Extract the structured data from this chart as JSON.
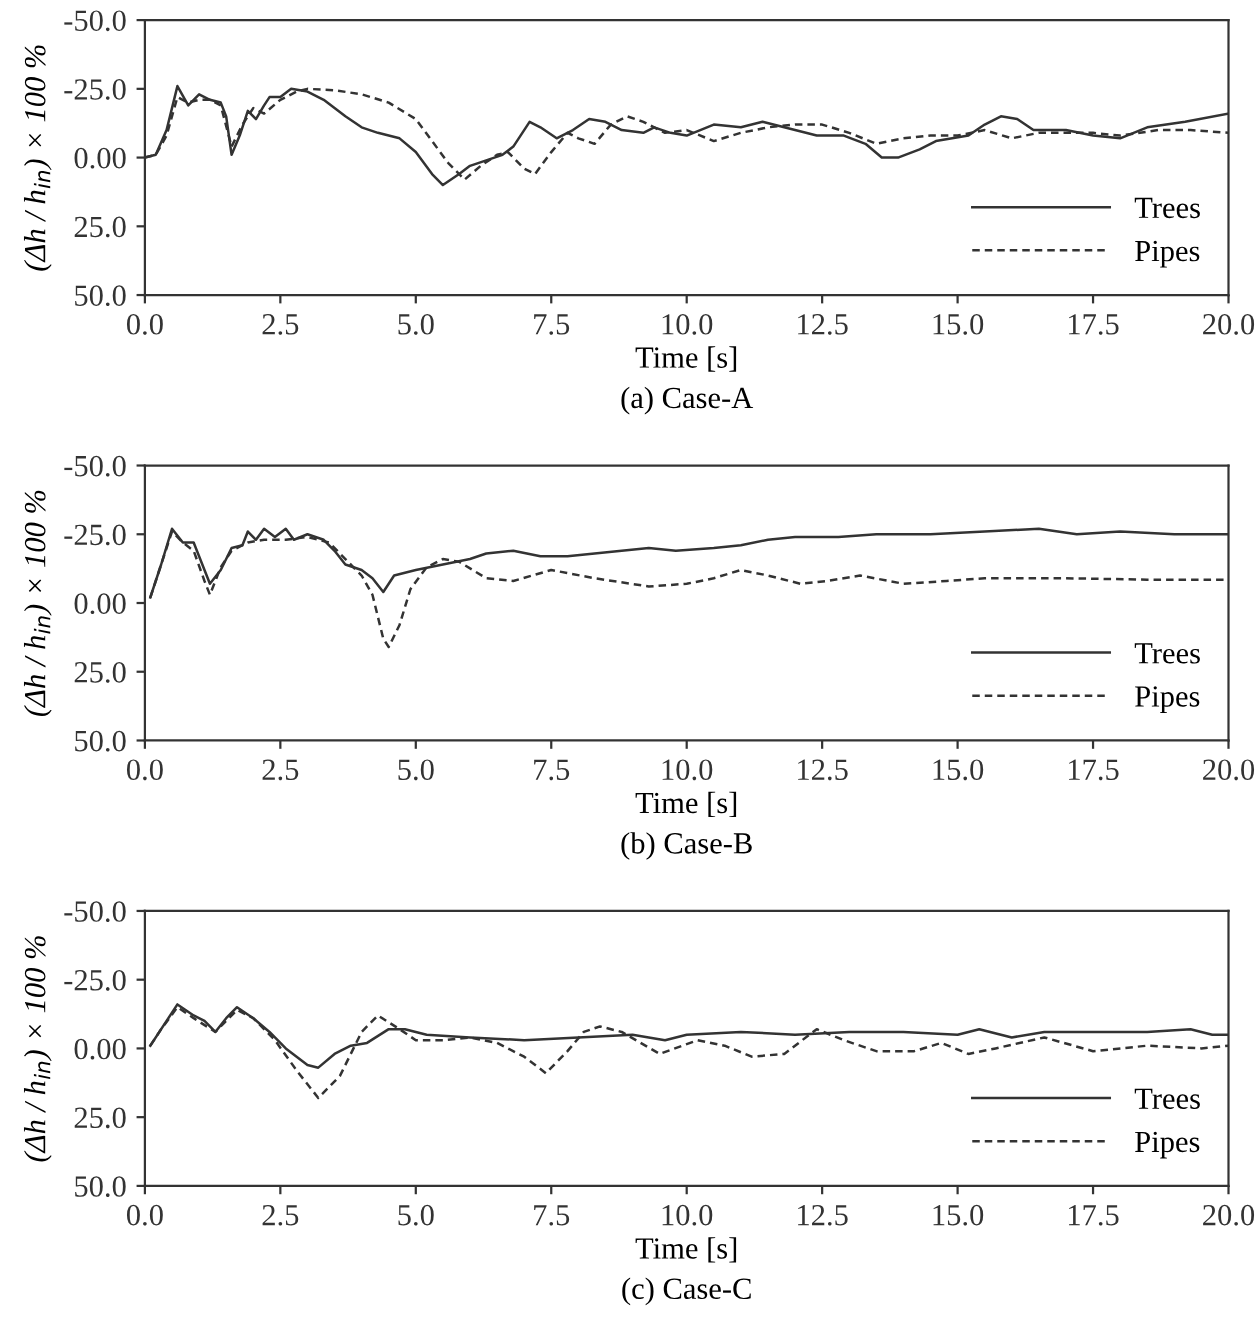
{
  "chart_data": [
    {
      "type": "line",
      "xlabel": "Time [s]",
      "ylabel": "(Δh / h$_{in}$) × 100 %",
      "annotations": [
        "(a) Case-A"
      ],
      "xlim": [
        0,
        20
      ],
      "xticks": [
        {
          "value": 0,
          "label": "0.0"
        },
        {
          "value": 2.5,
          "label": "2.5"
        },
        {
          "value": 5,
          "label": "5.0"
        },
        {
          "value": 7.5,
          "label": "7.5"
        },
        {
          "value": 10,
          "label": "10.0"
        },
        {
          "value": 12.5,
          "label": "12.5"
        },
        {
          "value": 15,
          "label": "15.0"
        },
        {
          "value": 17.5,
          "label": "17.5"
        },
        {
          "value": 20,
          "label": "20.0"
        }
      ],
      "ylim": [
        50,
        -50
      ],
      "yticks": [
        {
          "value": -50,
          "label": "-50.0"
        },
        {
          "value": -25,
          "label": "-25.0"
        },
        {
          "value": 0,
          "label": "0.00"
        },
        {
          "value": 25,
          "label": "25.0"
        },
        {
          "value": 50,
          "label": "50.0"
        }
      ],
      "grid": false,
      "legend": "bottom right",
      "marker": "none",
      "series": [
        {
          "name": "Trees",
          "color": "#333333",
          "line_style": "solid",
          "x": [
            0,
            0.2,
            0.4,
            0.6,
            0.8,
            1.0,
            1.2,
            1.4,
            1.5,
            1.6,
            1.75,
            1.9,
            2.05,
            2.2,
            2.3,
            2.5,
            2.7,
            3.0,
            3.3,
            3.7,
            4.0,
            4.3,
            4.7,
            5.0,
            5.3,
            5.5,
            5.8,
            6.0,
            6.3,
            6.6,
            6.8,
            7.1,
            7.3,
            7.6,
            7.9,
            8.2,
            8.5,
            8.8,
            9.2,
            9.4,
            9.7,
            10.0,
            10.5,
            11.0,
            11.4,
            12.0,
            12.4,
            12.9,
            13.3,
            13.6,
            13.9,
            14.3,
            14.6,
            15.2,
            15.5,
            15.8,
            16.1,
            16.4,
            17.0,
            17.5,
            18.0,
            18.5,
            19.2,
            20.0
          ],
          "values": [
            0,
            -1,
            -10,
            -26,
            -19,
            -23,
            -21,
            -20,
            -15,
            -1,
            -8,
            -17,
            -14,
            -19,
            -22,
            -22,
            -25,
            -24,
            -21,
            -15,
            -11,
            -9,
            -7,
            -2,
            6,
            10,
            6,
            3,
            1,
            -1,
            -4,
            -13,
            -11,
            -7,
            -10,
            -14,
            -13,
            -10,
            -9,
            -11,
            -9,
            -8,
            -12,
            -11,
            -13,
            -10,
            -8,
            -8,
            -5,
            0,
            0,
            -3,
            -6,
            -8,
            -12,
            -15,
            -14,
            -10,
            -10,
            -8,
            -7,
            -11,
            -13,
            -16
          ]
        },
        {
          "name": "Pipes",
          "color": "#333333",
          "line_style": "dashed",
          "x": [
            0,
            0.2,
            0.4,
            0.6,
            0.8,
            1.0,
            1.2,
            1.4,
            1.6,
            1.8,
            2.0,
            2.2,
            2.5,
            2.8,
            3.0,
            3.5,
            4.0,
            4.5,
            5.0,
            5.3,
            5.6,
            5.9,
            6.2,
            6.5,
            6.7,
            7.0,
            7.2,
            7.5,
            7.8,
            8.0,
            8.3,
            8.6,
            8.9,
            9.2,
            9.6,
            10.0,
            10.5,
            11.0,
            11.5,
            12.0,
            12.5,
            13.0,
            13.5,
            14.0,
            14.5,
            15.0,
            15.5,
            16.0,
            16.5,
            17.0,
            17.5,
            18.0,
            18.7,
            19.3,
            20.0
          ],
          "values": [
            0,
            -1,
            -8,
            -22,
            -20,
            -21,
            -21,
            -19,
            -4,
            -12,
            -18,
            -16,
            -21,
            -24,
            -25,
            -24.5,
            -23,
            -20,
            -14,
            -6,
            2,
            8,
            3,
            -1,
            -2,
            4,
            6,
            -2,
            -9,
            -7,
            -5,
            -12,
            -15,
            -13,
            -9,
            -10,
            -6,
            -9,
            -11,
            -12,
            -12,
            -9,
            -5,
            -7,
            -8,
            -8,
            -10,
            -7,
            -9,
            -9,
            -9,
            -8,
            -10,
            -10,
            -9
          ]
        }
      ]
    },
    {
      "type": "line",
      "xlabel": "Time [s]",
      "ylabel": "(Δh / h$_{in}$) × 100 %",
      "annotations": [
        "(b) Case-B"
      ],
      "xlim": [
        0,
        20
      ],
      "xticks": [
        {
          "value": 0,
          "label": "0.0"
        },
        {
          "value": 2.5,
          "label": "2.5"
        },
        {
          "value": 5,
          "label": "5.0"
        },
        {
          "value": 7.5,
          "label": "7.5"
        },
        {
          "value": 10,
          "label": "10.0"
        },
        {
          "value": 12.5,
          "label": "12.5"
        },
        {
          "value": 15,
          "label": "15.0"
        },
        {
          "value": 17.5,
          "label": "17.5"
        },
        {
          "value": 20,
          "label": "20.0"
        }
      ],
      "ylim": [
        50,
        -50
      ],
      "yticks": [
        {
          "value": -50,
          "label": "-50.0"
        },
        {
          "value": -25,
          "label": "-25.0"
        },
        {
          "value": 0,
          "label": "0.00"
        },
        {
          "value": 25,
          "label": "25.0"
        },
        {
          "value": 50,
          "label": "50.0"
        }
      ],
      "grid": false,
      "legend": "bottom right",
      "marker": "none",
      "series": [
        {
          "name": "Trees",
          "color": "#333333",
          "line_style": "solid",
          "x": [
            0.1,
            0.3,
            0.5,
            0.7,
            0.9,
            1.0,
            1.2,
            1.4,
            1.6,
            1.8,
            1.9,
            2.05,
            2.2,
            2.4,
            2.6,
            2.75,
            3.0,
            3.3,
            3.5,
            3.7,
            4.0,
            4.2,
            4.4,
            4.6,
            4.8,
            5.0,
            5.5,
            6.0,
            6.3,
            6.8,
            7.3,
            7.8,
            8.3,
            8.8,
            9.3,
            9.8,
            10.5,
            11.0,
            11.5,
            12.0,
            12.8,
            13.5,
            14.5,
            15.5,
            16.5,
            17.2,
            18.0,
            19.0,
            20.0
          ],
          "values": [
            -2,
            -14,
            -27,
            -22,
            -22,
            -17,
            -7,
            -12,
            -20,
            -21,
            -26,
            -23,
            -27,
            -24,
            -27,
            -23,
            -25,
            -23,
            -19,
            -14,
            -12,
            -9,
            -4,
            -10,
            -11,
            -12,
            -14,
            -16,
            -18,
            -19,
            -17,
            -17,
            -18,
            -19,
            -20,
            -19,
            -20,
            -21,
            -23,
            -24,
            -24,
            -25,
            -25,
            -26,
            -27,
            -25,
            -26,
            -25,
            -25
          ]
        },
        {
          "name": "Pipes",
          "color": "#333333",
          "line_style": "dashed",
          "x": [
            0.1,
            0.3,
            0.5,
            0.7,
            0.9,
            1.1,
            1.2,
            1.4,
            1.6,
            1.9,
            2.2,
            2.6,
            3.0,
            3.4,
            3.7,
            4.0,
            4.2,
            4.4,
            4.5,
            4.7,
            4.9,
            5.2,
            5.5,
            5.8,
            6.3,
            6.8,
            7.5,
            8.3,
            9.3,
            10.0,
            10.5,
            11.0,
            11.5,
            12.1,
            12.6,
            13.2,
            14.0,
            14.8,
            15.5,
            17.0,
            18.5,
            20.0
          ],
          "values": [
            -2,
            -14,
            -26,
            -22,
            -19,
            -8,
            -3,
            -13,
            -19,
            -22,
            -23,
            -23,
            -24,
            -22,
            -16,
            -10,
            -3,
            13,
            16,
            8,
            -5,
            -13,
            -16,
            -15,
            -9,
            -8,
            -12,
            -9,
            -6,
            -7,
            -9,
            -12,
            -10,
            -7,
            -8,
            -10,
            -7,
            -8,
            -9,
            -9,
            -8.5,
            -8.5
          ]
        }
      ]
    },
    {
      "type": "line",
      "xlabel": "Time [s]",
      "ylabel": "(Δh / h$_{in}$) × 100 %",
      "annotations": [
        "(c) Case-C"
      ],
      "xlim": [
        0,
        20
      ],
      "xticks": [
        {
          "value": 0,
          "label": "0.0"
        },
        {
          "value": 2.5,
          "label": "2.5"
        },
        {
          "value": 5,
          "label": "5.0"
        },
        {
          "value": 7.5,
          "label": "7.5"
        },
        {
          "value": 10,
          "label": "10.0"
        },
        {
          "value": 12.5,
          "label": "12.5"
        },
        {
          "value": 15,
          "label": "15.0"
        },
        {
          "value": 17.5,
          "label": "17.5"
        },
        {
          "value": 20,
          "label": "20.0"
        }
      ],
      "ylim": [
        50,
        -50
      ],
      "yticks": [
        {
          "value": -50,
          "label": "-50.0"
        },
        {
          "value": -25,
          "label": "-25.0"
        },
        {
          "value": 0,
          "label": "0.00"
        },
        {
          "value": 25,
          "label": "25.0"
        },
        {
          "value": 50,
          "label": "50.0"
        }
      ],
      "grid": false,
      "legend": "bottom right",
      "marker": "none",
      "series": [
        {
          "name": "Trees",
          "color": "#333333",
          "line_style": "solid",
          "x": [
            0.1,
            0.3,
            0.6,
            0.9,
            1.1,
            1.3,
            1.5,
            1.7,
            2.0,
            2.3,
            2.6,
            3.0,
            3.2,
            3.5,
            3.8,
            4.1,
            4.5,
            4.8,
            5.2,
            6.0,
            7.0,
            8.0,
            9.0,
            9.6,
            10.0,
            11.0,
            12.0,
            13.0,
            14.0,
            15.0,
            15.4,
            16.0,
            16.6,
            17.5,
            18.5,
            19.3,
            19.7,
            20.0
          ],
          "values": [
            -1,
            -7,
            -16,
            -12,
            -10,
            -6,
            -11,
            -15,
            -11,
            -6,
            0,
            6,
            7,
            2,
            -1,
            -2,
            -7,
            -7,
            -5,
            -4,
            -3,
            -4,
            -5,
            -3,
            -5,
            -6,
            -5,
            -6,
            -6,
            -5,
            -7,
            -4,
            -6,
            -6,
            -6,
            -7,
            -5,
            -5
          ]
        },
        {
          "name": "Pipes",
          "color": "#333333",
          "line_style": "dashed",
          "x": [
            0.1,
            0.3,
            0.6,
            0.9,
            1.3,
            1.7,
            2.0,
            2.4,
            2.8,
            3.2,
            3.6,
            4.0,
            4.3,
            4.7,
            5.0,
            5.5,
            6.0,
            6.5,
            7.0,
            7.4,
            7.8,
            8.1,
            8.4,
            8.8,
            9.5,
            10.2,
            10.7,
            11.2,
            11.8,
            12.4,
            12.9,
            13.5,
            14.2,
            14.7,
            15.2,
            15.7,
            16.6,
            17.5,
            18.5,
            19.5,
            20.0
          ],
          "values": [
            -1,
            -7,
            -15,
            -11,
            -6,
            -14,
            -11,
            -3,
            8,
            18,
            10,
            -6,
            -12,
            -7,
            -3,
            -3,
            -4,
            -2,
            3,
            9,
            1,
            -6,
            -8,
            -6,
            2,
            -3,
            -1,
            3,
            2,
            -7,
            -3,
            1,
            1,
            -2,
            2,
            0,
            -4,
            1,
            -1,
            0,
            -1
          ]
        }
      ]
    }
  ]
}
